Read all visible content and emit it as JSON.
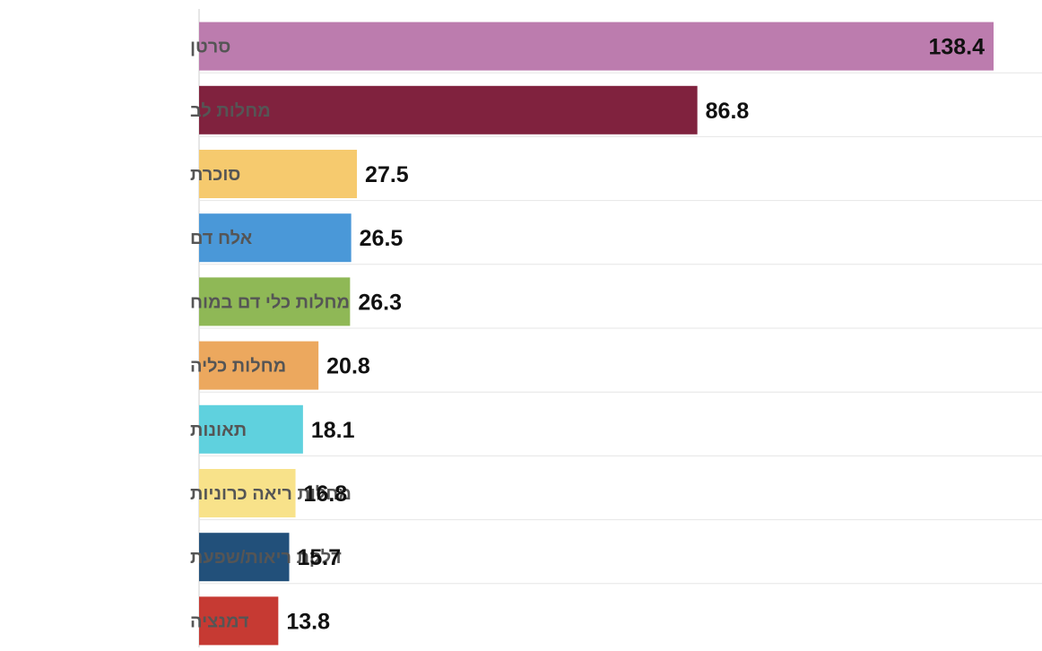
{
  "chart_data": {
    "type": "bar",
    "orientation": "horizontal",
    "title": "",
    "xlabel": "",
    "ylabel": "",
    "categories": [
      "סרטן",
      "מחלות לב",
      "סוכרת",
      "אלח דם",
      "מחלות כלי דם במוח",
      "מחלות כליה",
      "תאונות",
      "מחלות ריאה כרוניות",
      "דלקת ריאות/שפעת",
      "דמנציה"
    ],
    "values": [
      138.4,
      86.8,
      27.5,
      26.5,
      26.3,
      20.8,
      18.1,
      16.8,
      15.7,
      13.8
    ],
    "value_labels": [
      "138.4",
      "86.8",
      "27.5",
      "26.5",
      "26.3",
      "20.8",
      "18.1",
      "16.8",
      "15.7",
      "13.8"
    ],
    "colors": [
      "#bc7cae",
      "#80223e",
      "#f6ca6e",
      "#4a98d8",
      "#8fb856",
      "#eca85e",
      "#5fd1de",
      "#f8e28a",
      "#22507a",
      "#c63a33"
    ],
    "xlim": [
      0,
      140
    ],
    "grid": false,
    "legend": "none"
  }
}
